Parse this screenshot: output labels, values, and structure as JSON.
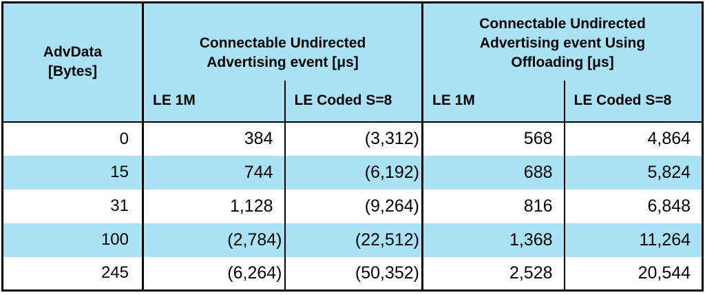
{
  "table": {
    "corner_header": "AdvData\n[Bytes]",
    "groups": [
      {
        "title": "Connectable Undirected\nAdvertising event [μs]",
        "sub": [
          "LE 1M",
          "LE Coded S=8"
        ]
      },
      {
        "title": "Connectable Undirected\nAdvertising event Using\nOffloading [μs]",
        "sub": [
          "LE 1M",
          "LE Coded S=8"
        ]
      }
    ],
    "rows": [
      [
        "0",
        "384",
        "(3,312)",
        "568",
        "4,864"
      ],
      [
        "15",
        "744",
        "(6,192)",
        "688",
        "5,824"
      ],
      [
        "31",
        "1,128",
        "(9,264)",
        "816",
        "6,848"
      ],
      [
        "100",
        "(2,784)",
        "(22,512)",
        "1,368",
        "11,264"
      ],
      [
        "245",
        "(6,264)",
        "(50,352)",
        "2,528",
        "20,544"
      ]
    ]
  },
  "colors": {
    "header_background": "#aae1f7",
    "stripe_background": "#aae1f7",
    "border": "#000000",
    "text": "#000000",
    "page_background": "#ffffff"
  }
}
